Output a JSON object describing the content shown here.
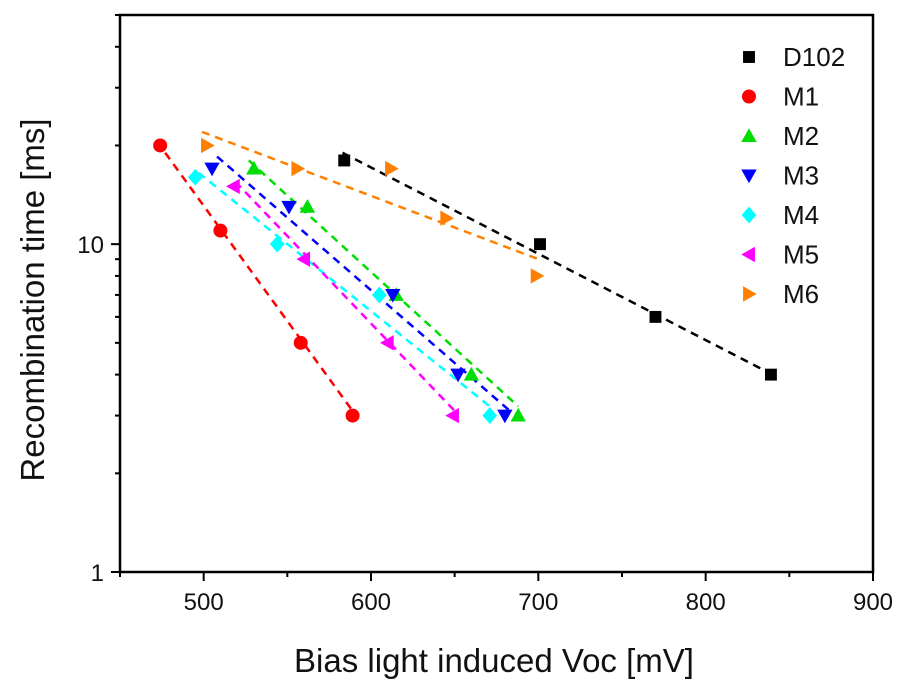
{
  "chart_data": {
    "type": "scatter",
    "xlabel": "Bias light induced Voc [mV]",
    "ylabel": "Recombination time [ms]",
    "xlim": [
      450,
      900
    ],
    "ylim": [
      1,
      50
    ],
    "y_scale": "log",
    "x_ticks": [
      500,
      600,
      700,
      800,
      900
    ],
    "x_tick_labels": [
      "500",
      "600",
      "700",
      "800",
      "900"
    ],
    "y_ticks": [
      1,
      10
    ],
    "y_tick_labels": [
      "1",
      "10"
    ],
    "grid": false,
    "legend_position": "top-right",
    "series": [
      {
        "name": "D102",
        "marker": "square",
        "color": "#000000",
        "points": [
          [
            584,
            18
          ],
          [
            701,
            10
          ],
          [
            770,
            6
          ],
          [
            839,
            4
          ]
        ],
        "fit": [
          [
            583,
            19
          ],
          [
            840,
            4
          ]
        ]
      },
      {
        "name": "M1",
        "marker": "circle",
        "color": "#ff0000",
        "points": [
          [
            474,
            20
          ],
          [
            510,
            11
          ],
          [
            558,
            5
          ],
          [
            589,
            3
          ]
        ],
        "fit": [
          [
            477,
            19
          ],
          [
            589,
            3.1
          ]
        ]
      },
      {
        "name": "M2",
        "marker": "triangle-up",
        "color": "#00dd00",
        "points": [
          [
            530,
            17
          ],
          [
            562,
            13
          ],
          [
            615,
            7
          ],
          [
            660,
            4
          ],
          [
            688,
            3
          ]
        ],
        "fit": [
          [
            527,
            18
          ],
          [
            688,
            3.2
          ]
        ]
      },
      {
        "name": "M3",
        "marker": "triangle-down",
        "color": "#0000ff",
        "points": [
          [
            505,
            17
          ],
          [
            551,
            13
          ],
          [
            613,
            7
          ],
          [
            652,
            4
          ],
          [
            680,
            3
          ]
        ],
        "fit": [
          [
            508,
            18.5
          ],
          [
            683,
            3.1
          ]
        ]
      },
      {
        "name": "M4",
        "marker": "diamond",
        "color": "#00ffff",
        "points": [
          [
            495,
            16
          ],
          [
            544,
            10
          ],
          [
            605,
            7
          ],
          [
            671,
            3
          ]
        ],
        "fit": [
          [
            497,
            16.5
          ],
          [
            671,
            3.2
          ]
        ]
      },
      {
        "name": "M5",
        "marker": "triangle-left",
        "color": "#ff00ff",
        "points": [
          [
            518,
            15
          ],
          [
            560,
            9
          ],
          [
            610,
            5
          ],
          [
            649,
            3
          ]
        ],
        "fit": [
          [
            519,
            15.5
          ],
          [
            650,
            3.1
          ]
        ]
      },
      {
        "name": "M6",
        "marker": "triangle-right",
        "color": "#ff8000",
        "points": [
          [
            502,
            20
          ],
          [
            556,
            17
          ],
          [
            612,
            17
          ],
          [
            645,
            12
          ],
          [
            699,
            8
          ]
        ],
        "fit": [
          [
            499,
            22
          ],
          [
            700,
            9
          ]
        ]
      }
    ]
  }
}
